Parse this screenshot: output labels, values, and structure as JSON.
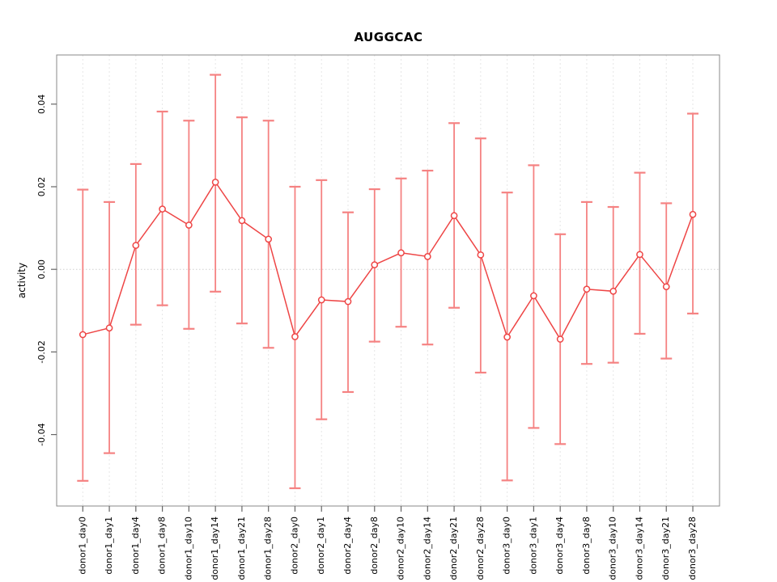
{
  "chart_data": {
    "type": "line",
    "title": "AUGGCAC",
    "xlabel": "",
    "ylabel": "activity",
    "categories": [
      "donor1_day0",
      "donor1_day1",
      "donor1_day4",
      "donor1_day8",
      "donor1_day10",
      "donor1_day14",
      "donor1_day21",
      "donor1_day28",
      "donor2_day0",
      "donor2_day1",
      "donor2_day4",
      "donor2_day8",
      "donor2_day10",
      "donor2_day14",
      "donor2_day21",
      "donor2_day28",
      "donor3_day0",
      "donor3_day1",
      "donor3_day4",
      "donor3_day8",
      "donor3_day10",
      "donor3_day14",
      "donor3_day21",
      "donor3_day28"
    ],
    "series": [
      {
        "name": "activity",
        "values": [
          -0.0158,
          -0.0142,
          0.0058,
          0.0146,
          0.0107,
          0.0211,
          0.0118,
          0.0073,
          -0.0163,
          -0.0074,
          -0.0078,
          0.0011,
          0.004,
          0.0031,
          0.013,
          0.0035,
          -0.0164,
          -0.0064,
          -0.0169,
          -0.0048,
          -0.0053,
          0.0036,
          -0.0042,
          0.0133
        ],
        "err_high": [
          0.0193,
          0.0163,
          0.0255,
          0.0382,
          0.036,
          0.0471,
          0.0368,
          0.036,
          0.02,
          0.0216,
          0.0138,
          0.0194,
          0.022,
          0.0239,
          0.0354,
          0.0317,
          0.0186,
          0.0252,
          0.0085,
          0.0163,
          0.0151,
          0.0234,
          0.016,
          0.0377
        ],
        "err_low": [
          -0.0512,
          -0.0445,
          -0.0134,
          -0.0087,
          -0.0144,
          -0.0054,
          -0.0131,
          -0.019,
          -0.053,
          -0.0363,
          -0.0297,
          -0.0175,
          -0.0139,
          -0.0182,
          -0.0093,
          -0.025,
          -0.0511,
          -0.0384,
          -0.0423,
          -0.0229,
          -0.0226,
          -0.0156,
          -0.0216,
          -0.0107
        ]
      }
    ],
    "ylim": [
      -0.0573,
      0.0519
    ],
    "yticks": [
      0.04,
      0.02,
      0.0,
      -0.02,
      -0.04
    ],
    "ytick_labels": [
      "0.04",
      "0.02",
      "0.00",
      "-0.02",
      "-0.04"
    ],
    "grid": "light dashed vertical line at each category; dotted horizontal line at zero",
    "legend": "none",
    "marker": "open-circle",
    "style": {
      "series_color": "#ee4545",
      "error_bar_color": "#f58282",
      "grid_color": "#e6e6e6",
      "zero_line_color": "#cfcfcf",
      "axis_color": "#666666",
      "box_color": "#888888",
      "background": "#ffffff",
      "title_color": "#000000"
    }
  }
}
